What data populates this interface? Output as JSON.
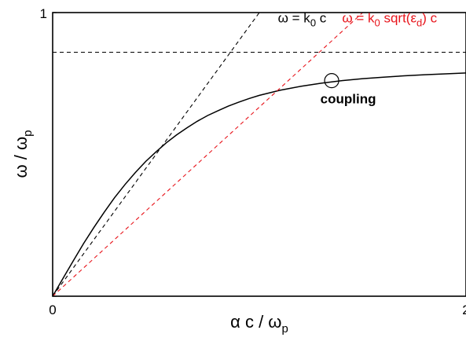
{
  "chart_data": {
    "type": "line",
    "xlabel": {
      "main": "α c / ω",
      "sub": "p"
    },
    "ylabel": {
      "main": "ω / ω",
      "sub": "p"
    },
    "xlim": [
      0,
      2
    ],
    "ylim": [
      0,
      1
    ],
    "xticks": [
      "0",
      "2"
    ],
    "yticks": [
      "1"
    ],
    "grid": false,
    "series": [
      {
        "style": "solid",
        "color": "#000000",
        "x": [
          0,
          0.05,
          0.1,
          0.15,
          0.2,
          0.25,
          0.3,
          0.35,
          0.4,
          0.45,
          0.5,
          0.55,
          0.6,
          0.65,
          0.7,
          0.75,
          0.8,
          0.85,
          0.9,
          0.95,
          1.0,
          1.1,
          1.2,
          1.3,
          1.4,
          1.5,
          1.6,
          1.7,
          1.8,
          1.9,
          2.0
        ],
        "y": [
          0,
          0.063,
          0.125,
          0.186,
          0.243,
          0.297,
          0.348,
          0.394,
          0.436,
          0.475,
          0.509,
          0.541,
          0.569,
          0.594,
          0.617,
          0.637,
          0.654,
          0.67,
          0.684,
          0.697,
          0.708,
          0.726,
          0.74,
          0.751,
          0.76,
          0.767,
          0.772,
          0.777,
          0.781,
          0.784,
          0.787
        ]
      },
      {
        "style": "dashed",
        "color": "#000000",
        "x": [
          0,
          1.0
        ],
        "y": [
          0,
          1.0
        ]
      },
      {
        "style": "dashed",
        "color": "#e8141b",
        "x": [
          0,
          1.5
        ],
        "y": [
          0,
          1.0
        ]
      },
      {
        "style": "dashed",
        "color": "#000000",
        "x": [
          0,
          2.0
        ],
        "y": [
          0.86,
          0.86
        ]
      }
    ],
    "annotations": [
      {
        "id": "light-line",
        "parts": [
          [
            "ω = k",
            "main"
          ],
          [
            "0",
            "sub"
          ],
          [
            " c",
            "main"
          ]
        ],
        "color": "#000000",
        "x": 1.09,
        "y": 0.965
      },
      {
        "id": "dielectric-line",
        "parts": [
          [
            "ω = k",
            "main"
          ],
          [
            "0",
            "sub"
          ],
          [
            " sqrt(ε",
            "main"
          ],
          [
            "d",
            "sub"
          ],
          [
            ") c",
            "main"
          ]
        ],
        "color": "#e8141b",
        "x": 1.86,
        "y": 0.965
      },
      {
        "id": "coupling-label",
        "text": "coupling",
        "color": "#000000",
        "x": 1.43,
        "y": 0.68
      }
    ],
    "marker": {
      "shape": "circle",
      "x": 1.35,
      "y": 0.76
    }
  }
}
